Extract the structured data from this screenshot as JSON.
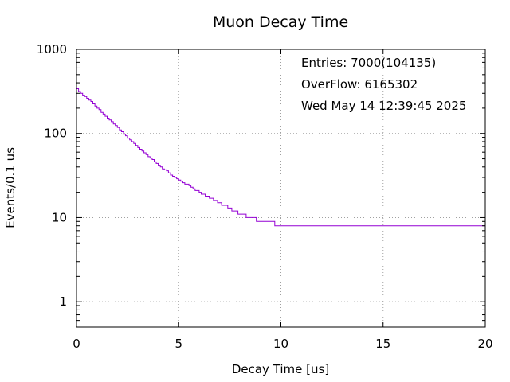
{
  "chart_data": {
    "type": "histogram",
    "title": "Muon Decay Time",
    "xlabel": "Decay Time [us]",
    "ylabel": "Events/0.1 us",
    "xlim": [
      0,
      20
    ],
    "ylim": [
      0.5,
      1000
    ],
    "yscale": "log",
    "x_ticks": [
      {
        "value": 0,
        "label": "0"
      },
      {
        "value": 5,
        "label": "5"
      },
      {
        "value": 10,
        "label": "10"
      },
      {
        "value": 15,
        "label": "15"
      },
      {
        "value": 20,
        "label": "20"
      }
    ],
    "y_ticks": [
      {
        "value": 1,
        "label": "1"
      },
      {
        "value": 10,
        "label": "10"
      },
      {
        "value": 100,
        "label": "100"
      },
      {
        "value": 1000,
        "label": "1000"
      }
    ],
    "grid": true,
    "annotations": [
      "Entries: 7000(104135)",
      "OverFlow: 6165302",
      "Wed May 14 12:39:45 2025"
    ],
    "series_color": "#9400d3",
    "bin_width": 0.1,
    "bin_start": 0,
    "counts": [
      340,
      315,
      300,
      285,
      275,
      262,
      250,
      240,
      225,
      212,
      200,
      192,
      178,
      170,
      160,
      152,
      145,
      138,
      130,
      124,
      118,
      110,
      105,
      98,
      94,
      88,
      84,
      80,
      76,
      72,
      68,
      65,
      62,
      59,
      56,
      53,
      51,
      49,
      46,
      44,
      42,
      40,
      38,
      37,
      36,
      34,
      32,
      31,
      30,
      29,
      28,
      27,
      26,
      25,
      25,
      24,
      23,
      22,
      21,
      21,
      20,
      19,
      19,
      18,
      18,
      17,
      17,
      16,
      16,
      15,
      15,
      14,
      14,
      14,
      13,
      13,
      12,
      12,
      12,
      11,
      11,
      11,
      11,
      10,
      10,
      10,
      10,
      10,
      9,
      9,
      9,
      9,
      9,
      9,
      9,
      9,
      9,
      8,
      8,
      8,
      8,
      8,
      8,
      8,
      8,
      8,
      8,
      8,
      8,
      8,
      8,
      8,
      8,
      8,
      8,
      8,
      8,
      8,
      8,
      8,
      8,
      8,
      8,
      8,
      8,
      8,
      8,
      8,
      8,
      8,
      8,
      8,
      8,
      8,
      8,
      8,
      8,
      8,
      8,
      8,
      8,
      8,
      8,
      8,
      8,
      8,
      8,
      8,
      8,
      8,
      8,
      8,
      8,
      8,
      8,
      8,
      8,
      8,
      8,
      8,
      8,
      8,
      8,
      8,
      8,
      8,
      8,
      8,
      8,
      8,
      8,
      8,
      8,
      8,
      8,
      8,
      8,
      8,
      8,
      8,
      8,
      8,
      8,
      8,
      8,
      8,
      8,
      8,
      8,
      8,
      8,
      8,
      8,
      8,
      8,
      8,
      8,
      8,
      8,
      8
    ]
  }
}
